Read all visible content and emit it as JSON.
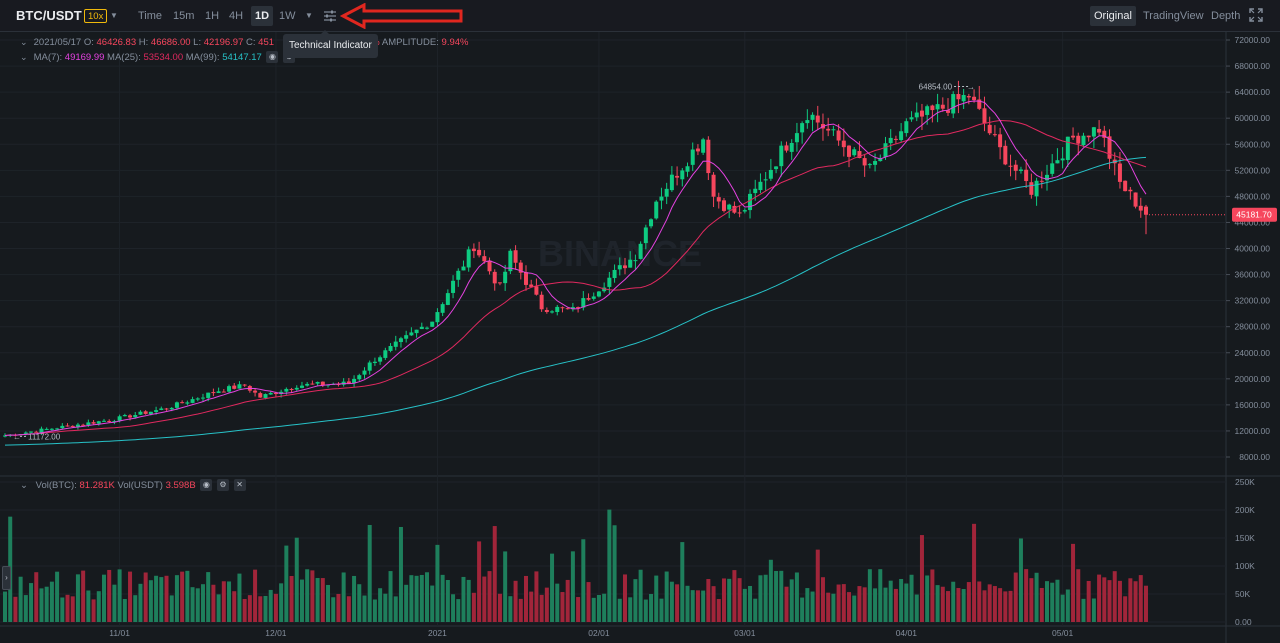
{
  "toolbar": {
    "symbol": "BTC/USDT",
    "leverage": "10x",
    "intervals": [
      "Time",
      "15m",
      "1H",
      "4H",
      "1D",
      "1W"
    ],
    "active_interval": "1D",
    "views": [
      "Original",
      "TradingView",
      "Depth"
    ],
    "active_view": "Original",
    "tooltip": "Technical Indicator"
  },
  "legend": {
    "date": "2021/05/17",
    "open_label": "O:",
    "open": "46426.83",
    "high_label": "H:",
    "high": "46686.00",
    "low_label": "L:",
    "low": "42196.97",
    "close_label": "C:",
    "close": "451",
    "change_tail": "%",
    "amplitude_label": "AMPLITUDE:",
    "amplitude": "9.94%",
    "ma7_label": "MA(7):",
    "ma7": "49169.99",
    "ma25_label": "MA(25):",
    "ma25": "53534.00",
    "ma99_label": "MA(99):",
    "ma99": "54147.17"
  },
  "vol_legend": {
    "btc_label": "Vol(BTC):",
    "btc": "81.281K",
    "usdt_label": "Vol(USDT)",
    "usdt": "3.598B"
  },
  "colors": {
    "up": "#0ecb81",
    "down": "#f6465d",
    "vol_up": "#1e7f5c",
    "vol_down": "#a1253a",
    "ma7": "#e442e0",
    "ma25": "#e0295f",
    "ma99": "#27c1c7",
    "arrow": "#e0271f"
  },
  "chart_data": {
    "type": "candlestick",
    "price_axis": {
      "ticks": [
        72000,
        68000,
        64000,
        60000,
        56000,
        52000,
        48000,
        44000,
        40000,
        36000,
        32000,
        28000,
        24000,
        20000,
        16000,
        12000,
        8000
      ],
      "tick_labels": [
        "72000.00",
        "68000.00",
        "64000.00",
        "60000.00",
        "56000.00",
        "52000.00",
        "48000.00",
        "44000.00",
        "40000.00",
        "36000.00",
        "32000.00",
        "28000.00",
        "24000.00",
        "20000.00",
        "16000.00",
        "12000.00",
        "8000.00"
      ]
    },
    "volume_axis": {
      "ticks": [
        250000,
        200000,
        150000,
        100000,
        50000,
        0
      ],
      "tick_labels": [
        "250K",
        "200K",
        "150K",
        "100K",
        "50K",
        "0.00"
      ]
    },
    "date_axis": [
      "11/01",
      "12/01",
      "2021",
      "02/01",
      "03/01",
      "04/01",
      "05/01"
    ],
    "current_price": "45181.70",
    "max_marker": "64854.00",
    "min_marker": "11172.00",
    "price_keyframes": [
      [
        "2020-10-10",
        11300
      ],
      [
        "2020-10-20",
        12500
      ],
      [
        "2020-10-31",
        13800
      ],
      [
        "2020-11-10",
        15500
      ],
      [
        "2020-11-20",
        18200
      ],
      [
        "2020-11-25",
        19000
      ],
      [
        "2020-11-28",
        17200
      ],
      [
        "2020-12-05",
        19000
      ],
      [
        "2020-12-15",
        19300
      ],
      [
        "2020-12-20",
        23000
      ],
      [
        "2020-12-31",
        29000
      ],
      [
        "2021-01-08",
        40500
      ],
      [
        "2021-01-13",
        34000
      ],
      [
        "2021-01-15",
        39000
      ],
      [
        "2021-01-21",
        31000
      ],
      [
        "2021-01-27",
        30500
      ],
      [
        "2021-02-08",
        39000
      ],
      [
        "2021-02-12",
        47500
      ],
      [
        "2021-02-21",
        57000
      ],
      [
        "2021-02-23",
        48000
      ],
      [
        "2021-02-28",
        45000
      ],
      [
        "2021-03-13",
        61000
      ],
      [
        "2021-03-25",
        52000
      ],
      [
        "2021-04-01",
        59000
      ],
      [
        "2021-04-13",
        63500
      ],
      [
        "2021-04-19",
        55000
      ],
      [
        "2021-04-25",
        49000
      ],
      [
        "2021-05-03",
        57000
      ],
      [
        "2021-05-08",
        58500
      ],
      [
        "2021-05-12",
        50000
      ],
      [
        "2021-05-17",
        45181
      ]
    ]
  }
}
